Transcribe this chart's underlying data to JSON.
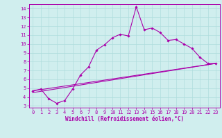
{
  "title": "",
  "xlabel": "Windchill (Refroidissement éolien,°C)",
  "ylabel": "",
  "xlim": [
    -0.5,
    23.5
  ],
  "ylim": [
    2.8,
    14.5
  ],
  "yticks": [
    3,
    4,
    5,
    6,
    7,
    8,
    9,
    10,
    11,
    12,
    13,
    14
  ],
  "xticks": [
    0,
    1,
    2,
    3,
    4,
    5,
    6,
    7,
    8,
    9,
    10,
    11,
    12,
    13,
    14,
    15,
    16,
    17,
    18,
    19,
    20,
    21,
    22,
    23
  ],
  "bg_color": "#d0eeee",
  "line_color": "#aa00aa",
  "grid_color": "#b0dddd",
  "lines": [
    {
      "x": [
        0,
        1,
        2,
        3,
        4,
        5,
        6,
        7,
        8,
        9,
        10,
        11,
        12,
        13,
        14,
        15,
        16,
        17,
        18,
        19,
        20,
        21,
        22,
        23
      ],
      "y": [
        4.7,
        4.9,
        3.8,
        3.3,
        3.6,
        4.9,
        6.5,
        7.4,
        9.3,
        9.9,
        10.7,
        11.1,
        10.9,
        14.2,
        11.6,
        11.8,
        11.3,
        10.4,
        10.5,
        10.0,
        9.5,
        8.5,
        7.8,
        7.8
      ],
      "marker": true
    },
    {
      "x": [
        0,
        23
      ],
      "y": [
        4.7,
        7.8
      ],
      "marker": false
    },
    {
      "x": [
        0,
        23
      ],
      "y": [
        4.5,
        7.8
      ],
      "marker": false
    }
  ]
}
